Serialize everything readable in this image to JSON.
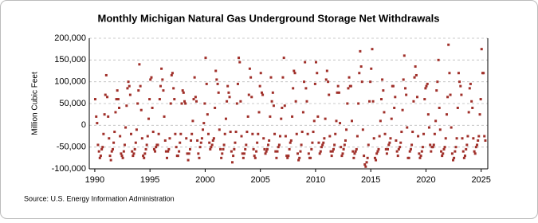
{
  "chart_data": {
    "type": "scatter",
    "title": "Monthly Michigan Natural Gas Underground Storage Net Withdrawals",
    "y_label": "Million Cubic Feet",
    "source": "Source: U.S. Energy Information Administration",
    "color": "#a0302a",
    "grid": true,
    "xlim": [
      1989.5,
      2025.6
    ],
    "ylim": [
      -100000,
      200000
    ],
    "xticks": [
      1990,
      1995,
      2000,
      2005,
      2010,
      2015,
      2020,
      2025
    ],
    "yticks": [
      {
        "value": -100000,
        "label": "-100,000"
      },
      {
        "value": -50000,
        "label": "-50,000"
      },
      0,
      {
        "value": 50000,
        "label": "50,000"
      },
      {
        "value": 100000,
        "label": "100,000"
      },
      {
        "value": 150000,
        "label": "150,000"
      },
      {
        "value": 200000,
        "label": "200,000"
      }
    ],
    "x": [
      1990.04,
      1990.13,
      1990.21,
      1990.29,
      1990.38,
      1990.46,
      1990.54,
      1990.63,
      1990.71,
      1990.79,
      1990.88,
      1990.96,
      1991.04,
      1991.13,
      1991.21,
      1991.29,
      1991.38,
      1991.46,
      1991.54,
      1991.63,
      1991.71,
      1991.79,
      1991.88,
      1991.96,
      1992.04,
      1992.13,
      1992.21,
      1992.29,
      1992.38,
      1992.46,
      1992.54,
      1992.63,
      1992.71,
      1992.79,
      1992.88,
      1992.96,
      1993.04,
      1993.13,
      1993.21,
      1993.29,
      1993.38,
      1993.46,
      1993.54,
      1993.63,
      1993.71,
      1993.79,
      1993.88,
      1993.96,
      1994.04,
      1994.13,
      1994.21,
      1994.29,
      1994.38,
      1994.46,
      1994.54,
      1994.63,
      1994.71,
      1994.79,
      1994.88,
      1994.96,
      1995.04,
      1995.13,
      1995.21,
      1995.29,
      1995.38,
      1995.46,
      1995.54,
      1995.63,
      1995.71,
      1995.79,
      1995.88,
      1995.96,
      1996.04,
      1996.13,
      1996.21,
      1996.29,
      1996.38,
      1996.46,
      1996.54,
      1996.63,
      1996.71,
      1996.79,
      1996.88,
      1996.96,
      1997.04,
      1997.13,
      1997.21,
      1997.29,
      1997.38,
      1997.46,
      1997.54,
      1997.63,
      1997.71,
      1997.79,
      1997.88,
      1997.96,
      1998.04,
      1998.13,
      1998.21,
      1998.29,
      1998.38,
      1998.46,
      1998.54,
      1998.63,
      1998.71,
      1998.79,
      1998.88,
      1998.96,
      1999.04,
      1999.13,
      1999.21,
      1999.29,
      1999.38,
      1999.46,
      1999.54,
      1999.63,
      1999.71,
      1999.79,
      1999.88,
      1999.96,
      2000.04,
      2000.13,
      2000.21,
      2000.29,
      2000.38,
      2000.46,
      2000.54,
      2000.63,
      2000.71,
      2000.79,
      2000.88,
      2000.96,
      2001.04,
      2001.13,
      2001.21,
      2001.29,
      2001.38,
      2001.46,
      2001.54,
      2001.63,
      2001.71,
      2001.79,
      2001.88,
      2001.96,
      2002.04,
      2002.13,
      2002.21,
      2002.29,
      2002.38,
      2002.46,
      2002.54,
      2002.63,
      2002.71,
      2002.79,
      2002.88,
      2002.96,
      2003.04,
      2003.13,
      2003.21,
      2003.29,
      2003.38,
      2003.46,
      2003.54,
      2003.63,
      2003.71,
      2003.79,
      2003.88,
      2003.96,
      2004.04,
      2004.13,
      2004.21,
      2004.29,
      2004.38,
      2004.46,
      2004.54,
      2004.63,
      2004.71,
      2004.79,
      2004.88,
      2004.96,
      2005.04,
      2005.13,
      2005.21,
      2005.29,
      2005.38,
      2005.46,
      2005.54,
      2005.63,
      2005.71,
      2005.79,
      2005.88,
      2005.96,
      2006.04,
      2006.13,
      2006.21,
      2006.29,
      2006.38,
      2006.46,
      2006.54,
      2006.63,
      2006.71,
      2006.79,
      2006.88,
      2006.96,
      2007.04,
      2007.13,
      2007.21,
      2007.29,
      2007.38,
      2007.46,
      2007.54,
      2007.63,
      2007.71,
      2007.79,
      2007.88,
      2007.96,
      2008.04,
      2008.13,
      2008.21,
      2008.29,
      2008.38,
      2008.46,
      2008.54,
      2008.63,
      2008.71,
      2008.79,
      2008.88,
      2008.96,
      2009.04,
      2009.13,
      2009.21,
      2009.29,
      2009.38,
      2009.46,
      2009.54,
      2009.63,
      2009.71,
      2009.79,
      2009.88,
      2009.96,
      2010.04,
      2010.13,
      2010.21,
      2010.29,
      2010.38,
      2010.46,
      2010.54,
      2010.63,
      2010.71,
      2010.79,
      2010.88,
      2010.96,
      2011.04,
      2011.13,
      2011.21,
      2011.29,
      2011.38,
      2011.46,
      2011.54,
      2011.63,
      2011.71,
      2011.79,
      2011.88,
      2011.96,
      2012.04,
      2012.13,
      2012.21,
      2012.29,
      2012.38,
      2012.46,
      2012.54,
      2012.63,
      2012.71,
      2012.79,
      2012.88,
      2012.96,
      2013.04,
      2013.13,
      2013.21,
      2013.29,
      2013.38,
      2013.46,
      2013.54,
      2013.63,
      2013.71,
      2013.79,
      2013.88,
      2013.96,
      2014.04,
      2014.13,
      2014.21,
      2014.29,
      2014.38,
      2014.46,
      2014.54,
      2014.63,
      2014.71,
      2014.79,
      2014.88,
      2014.96,
      2015.04,
      2015.13,
      2015.21,
      2015.29,
      2015.38,
      2015.46,
      2015.54,
      2015.63,
      2015.71,
      2015.79,
      2015.88,
      2015.96,
      2016.04,
      2016.13,
      2016.21,
      2016.29,
      2016.38,
      2016.46,
      2016.54,
      2016.63,
      2016.71,
      2016.79,
      2016.88,
      2016.96,
      2017.04,
      2017.13,
      2017.21,
      2017.29,
      2017.38,
      2017.46,
      2017.54,
      2017.63,
      2017.71,
      2017.79,
      2017.88,
      2017.96,
      2018.04,
      2018.13,
      2018.21,
      2018.29,
      2018.38,
      2018.46,
      2018.54,
      2018.63,
      2018.71,
      2018.79,
      2018.88,
      2018.96,
      2019.04,
      2019.13,
      2019.21,
      2019.29,
      2019.38,
      2019.46,
      2019.54,
      2019.63,
      2019.71,
      2019.79,
      2019.88,
      2019.96,
      2020.04,
      2020.13,
      2020.21,
      2020.29,
      2020.38,
      2020.46,
      2020.54,
      2020.63,
      2020.71,
      2020.79,
      2020.88,
      2020.96,
      2021.04,
      2021.13,
      2021.21,
      2021.29,
      2021.38,
      2021.46,
      2021.54,
      2021.63,
      2021.71,
      2021.79,
      2021.88,
      2021.96,
      2022.04,
      2022.13,
      2022.21,
      2022.29,
      2022.38,
      2022.46,
      2022.54,
      2022.63,
      2022.71,
      2022.79,
      2022.88,
      2022.96,
      2023.04,
      2023.13,
      2023.21,
      2023.29,
      2023.38,
      2023.46,
      2023.54,
      2023.63,
      2023.71,
      2023.79,
      2023.88,
      2023.96,
      2024.04,
      2024.13,
      2024.21,
      2024.29,
      2024.38,
      2024.46,
      2024.54,
      2024.63,
      2024.71,
      2024.79,
      2024.88,
      2024.96,
      2025.04,
      2025.13,
      2025.21,
      2025.29,
      2025.38
    ],
    "values": [
      60000,
      20000,
      5000,
      -45000,
      -60000,
      -75000,
      -70000,
      -55000,
      -50000,
      -20000,
      25000,
      70000,
      115000,
      65000,
      20000,
      -30000,
      -70000,
      -80000,
      -60000,
      -55000,
      -40000,
      -15000,
      30000,
      60000,
      80000,
      60000,
      40000,
      -25000,
      -65000,
      -70000,
      -75000,
      -60000,
      -45000,
      -5000,
      45000,
      85000,
      100000,
      90000,
      70000,
      -20000,
      -60000,
      -70000,
      -65000,
      -55000,
      -40000,
      -10000,
      50000,
      80000,
      140000,
      90000,
      35000,
      -30000,
      -70000,
      -75000,
      -65000,
      -55000,
      -45000,
      -25000,
      15000,
      60000,
      105000,
      110000,
      40000,
      -15000,
      -55000,
      -60000,
      -50000,
      -45000,
      -45000,
      -20000,
      60000,
      90000,
      130000,
      105000,
      80000,
      20000,
      -35000,
      -60000,
      -75000,
      -60000,
      -55000,
      -30000,
      50000,
      115000,
      120000,
      85000,
      60000,
      -20000,
      -50000,
      -70000,
      -70000,
      -60000,
      -40000,
      -20000,
      50000,
      80000,
      75000,
      55000,
      50000,
      -30000,
      -65000,
      -80000,
      -65000,
      -55000,
      -35000,
      -20000,
      10000,
      60000,
      110000,
      65000,
      55000,
      -35000,
      -65000,
      -75000,
      -50000,
      -40000,
      -30000,
      -10000,
      5000,
      50000,
      155000,
      95000,
      25000,
      -20000,
      -40000,
      -55000,
      -50000,
      -45000,
      -35000,
      -30000,
      40000,
      125000,
      105000,
      95000,
      75000,
      -10000,
      -55000,
      -75000,
      -65000,
      -55000,
      -45000,
      -20000,
      15000,
      55000,
      90000,
      75000,
      65000,
      -15000,
      -60000,
      -85000,
      -70000,
      -55000,
      -40000,
      -15000,
      50000,
      95000,
      155000,
      145000,
      55000,
      -25000,
      -65000,
      -75000,
      -65000,
      -55000,
      -45000,
      -15000,
      20000,
      70000,
      130000,
      110000,
      65000,
      -20000,
      -55000,
      -70000,
      -75000,
      -60000,
      -40000,
      -20000,
      30000,
      90000,
      120000,
      75000,
      70000,
      -30000,
      -55000,
      -65000,
      -60000,
      -55000,
      -45000,
      -35000,
      20000,
      110000,
      55000,
      75000,
      45000,
      -20000,
      -60000,
      -75000,
      -60000,
      -50000,
      -45000,
      -25000,
      15000,
      40000,
      110000,
      155000,
      45000,
      -25000,
      -70000,
      -75000,
      -70000,
      -55000,
      -40000,
      -35000,
      20000,
      85000,
      125000,
      120000,
      55000,
      -20000,
      -65000,
      -80000,
      -75000,
      -60000,
      -45000,
      -15000,
      30000,
      100000,
      145000,
      85000,
      55000,
      -20000,
      -65000,
      -75000,
      -75000,
      -55000,
      -40000,
      -15000,
      10000,
      95000,
      145000,
      120000,
      20000,
      -40000,
      -65000,
      -60000,
      -50000,
      -45000,
      -40000,
      -30000,
      15000,
      105000,
      125000,
      100000,
      70000,
      -25000,
      -60000,
      -70000,
      -60000,
      -55000,
      -45000,
      -20000,
      10000,
      75000,
      90000,
      75000,
      5000,
      -50000,
      -70000,
      -65000,
      -55000,
      -45000,
      -35000,
      -10000,
      50000,
      85000,
      110000,
      90000,
      90000,
      10000,
      -60000,
      -75000,
      -65000,
      -60000,
      -55000,
      -25000,
      50000,
      120000,
      170000,
      135000,
      100000,
      -10000,
      -70000,
      -90000,
      -95000,
      -85000,
      -75000,
      -45000,
      55000,
      100000,
      130000,
      175000,
      55000,
      -30000,
      -75000,
      -80000,
      -65000,
      -60000,
      -55000,
      -25000,
      10000,
      60000,
      105000,
      80000,
      30000,
      -20000,
      -55000,
      -65000,
      -55000,
      -45000,
      -40000,
      -30000,
      15000,
      90000,
      90000,
      40000,
      65000,
      -35000,
      -60000,
      -70000,
      -55000,
      -50000,
      -40000,
      -15000,
      35000,
      105000,
      160000,
      85000,
      70000,
      -5000,
      -75000,
      -75000,
      -60000,
      -55000,
      -45000,
      -15000,
      55000,
      110000,
      135000,
      115000,
      65000,
      -25000,
      -65000,
      -75000,
      -70000,
      -60000,
      -50000,
      -20000,
      60000,
      85000,
      90000,
      95000,
      25000,
      -5000,
      -45000,
      -60000,
      -50000,
      -50000,
      -45000,
      -20000,
      10000,
      80000,
      100000,
      150000,
      40000,
      -10000,
      -60000,
      -70000,
      -65000,
      -55000,
      -50000,
      -30000,
      25000,
      65000,
      185000,
      120000,
      70000,
      -5000,
      -65000,
      -80000,
      -75000,
      -60000,
      -50000,
      -30000,
      40000,
      120000,
      100000,
      90000,
      70000,
      -30000,
      -60000,
      -75000,
      -70000,
      -55000,
      -45000,
      -25000,
      30000,
      85000,
      95000,
      55000,
      40000,
      -30000,
      -60000,
      -65000,
      -50000,
      -45000,
      -35000,
      -25000,
      25000,
      60000,
      175000,
      120000,
      120000,
      -25000,
      -35000
    ]
  }
}
